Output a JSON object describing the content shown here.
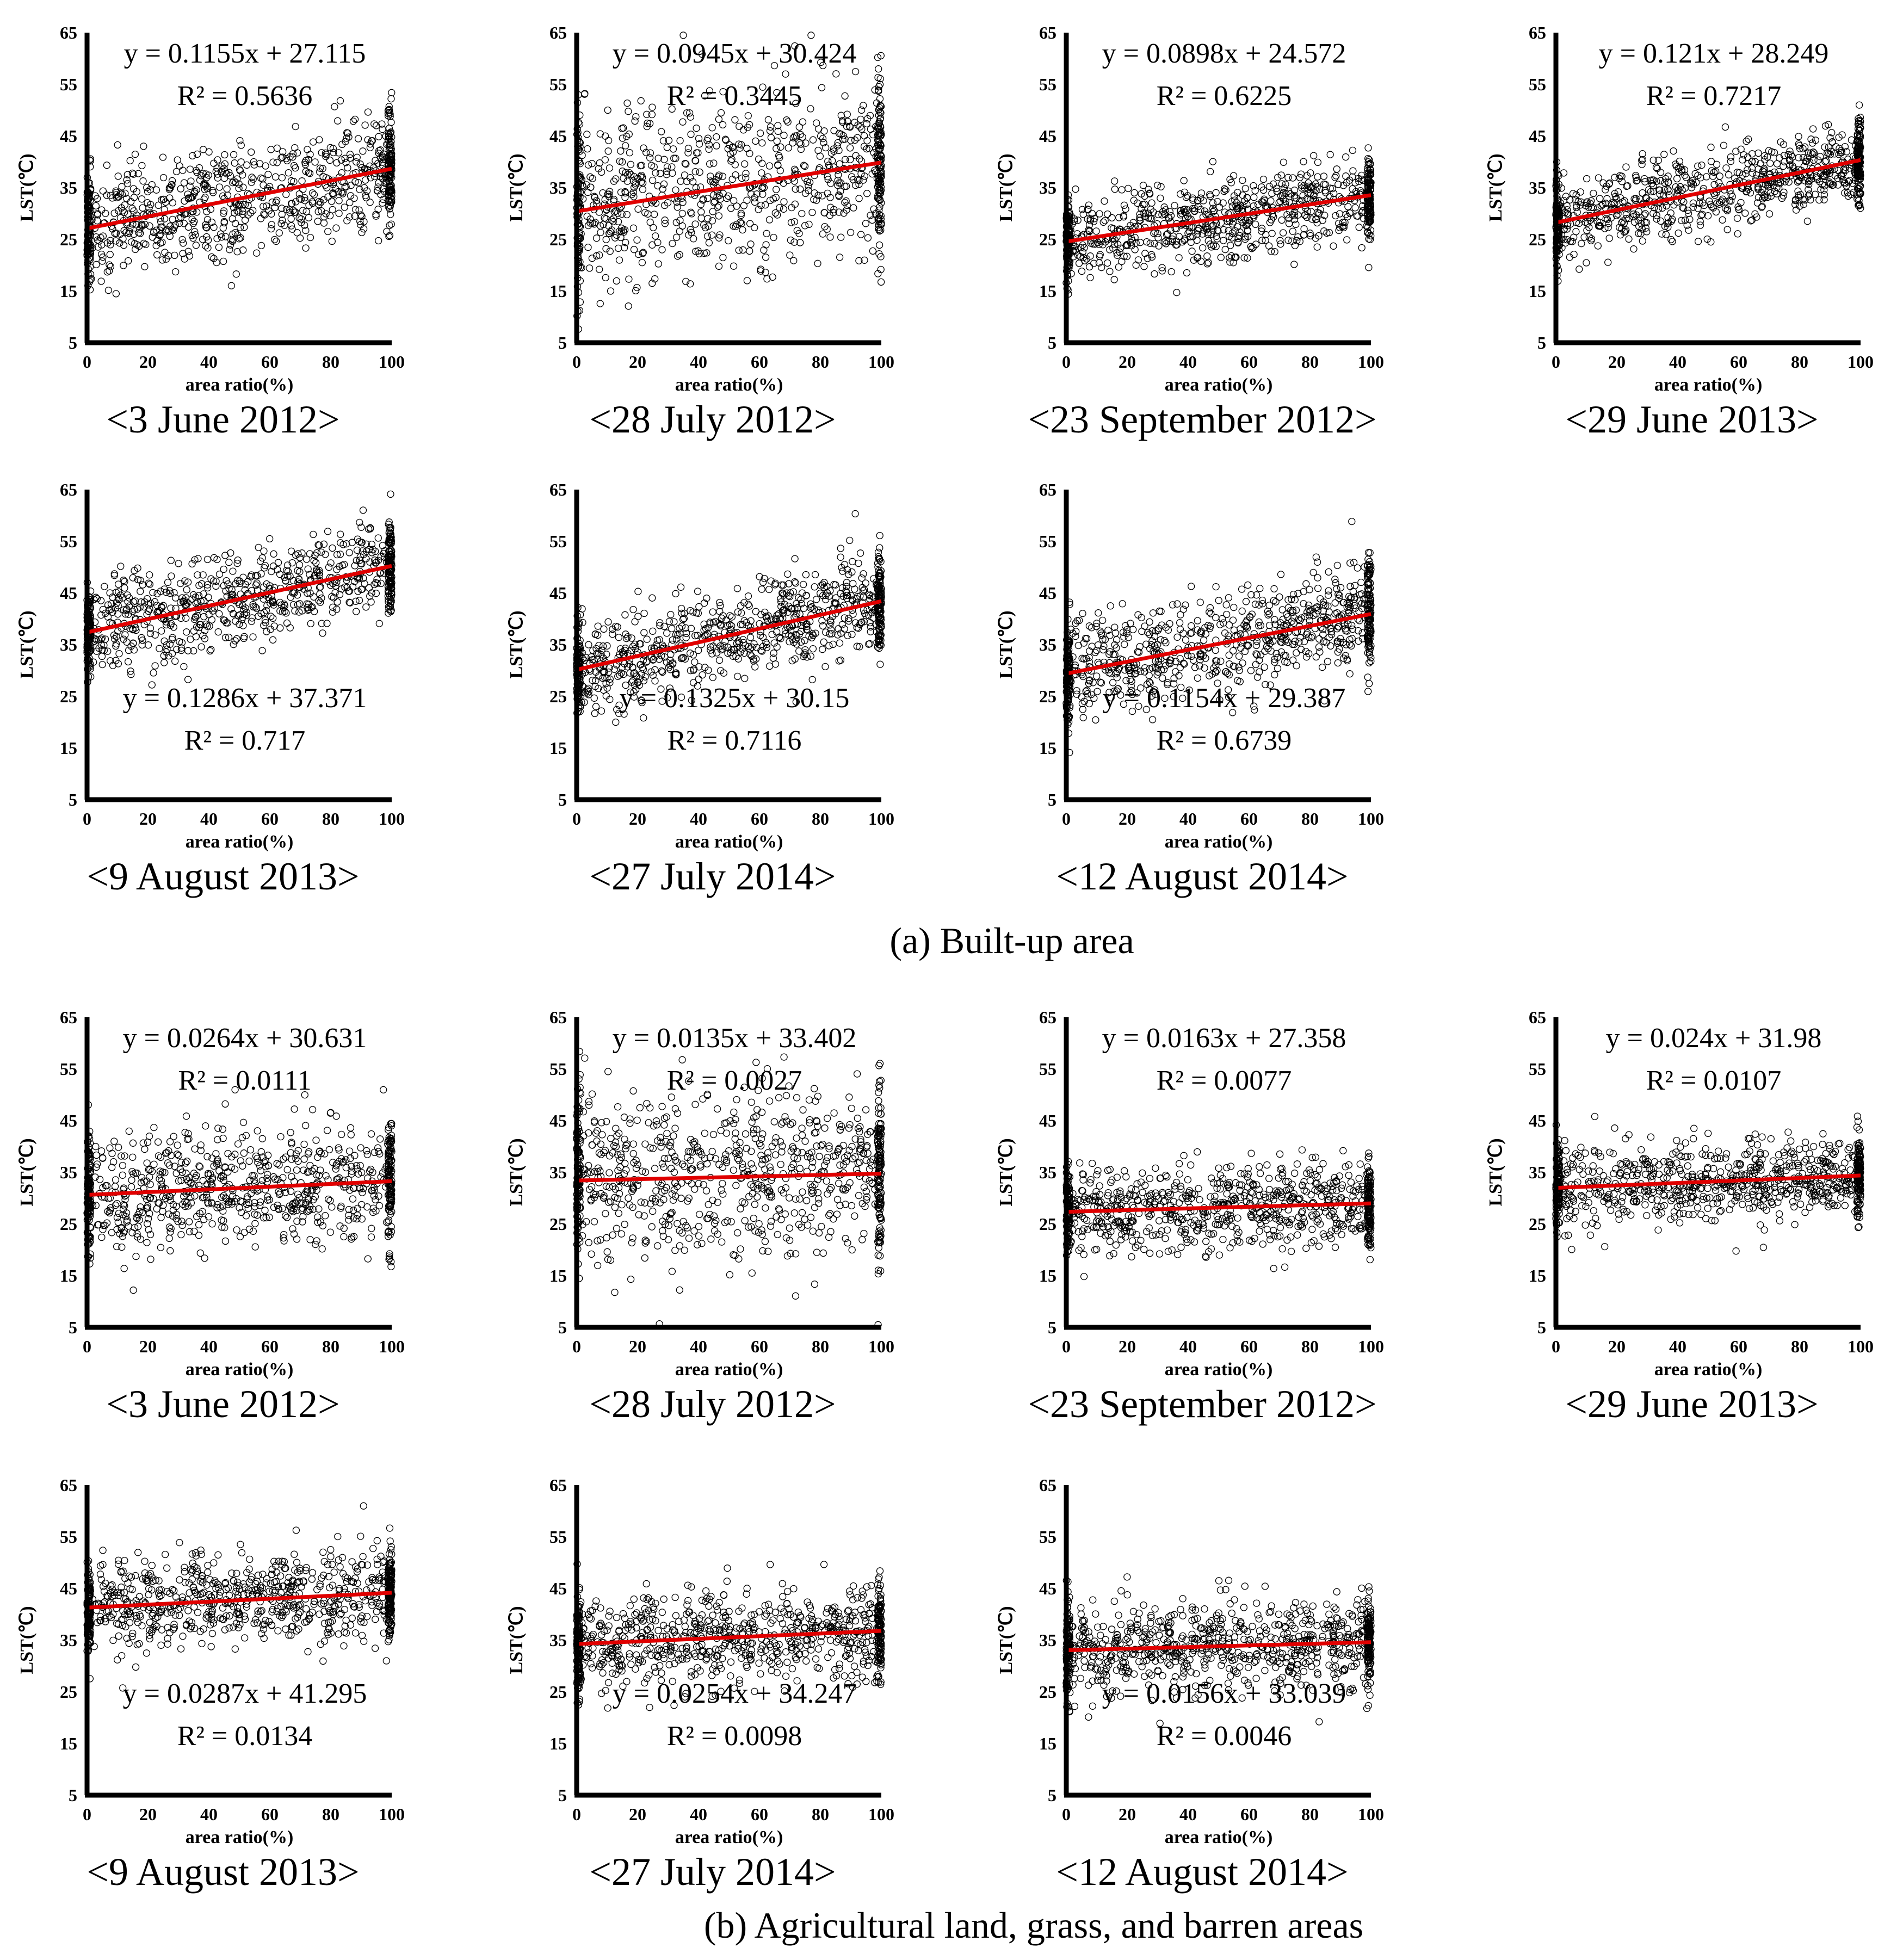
{
  "colors": {
    "points": "#000000",
    "trend": "#e00000",
    "axis": "#000000"
  },
  "sections": [
    {
      "label": "(a) Built-up area"
    },
    {
      "label": "(b) Agricultural land, grass, and barren areas"
    }
  ],
  "chart_data": [
    {
      "type": "scatter",
      "section": "a",
      "title": "<3 June 2012>",
      "xlabel": "area ratio(%)",
      "ylabel": "LST(℃)",
      "xlim": [
        0,
        100
      ],
      "ylim": [
        5,
        65
      ],
      "xticks": [
        0,
        20,
        40,
        60,
        80,
        100
      ],
      "yticks": [
        5,
        15,
        25,
        35,
        45,
        55,
        65
      ],
      "equation": "y = 0.1155x + 27.115",
      "r2": "R² = 0.5636",
      "slope": 0.1155,
      "intercept": 27.115,
      "spread": 5.5
    },
    {
      "type": "scatter",
      "section": "a",
      "title": "<28 July 2012>",
      "xlabel": "area ratio(%)",
      "ylabel": "LST(℃)",
      "xlim": [
        0,
        100
      ],
      "ylim": [
        5,
        65
      ],
      "xticks": [
        0,
        20,
        40,
        60,
        80,
        100
      ],
      "yticks": [
        5,
        15,
        25,
        35,
        45,
        55,
        65
      ],
      "equation": "y = 0.0945x + 30.424",
      "r2": "R² = 0.3445",
      "slope": 0.0945,
      "intercept": 30.424,
      "spread": 8.5
    },
    {
      "type": "scatter",
      "section": "a",
      "title": "<23 September 2012>",
      "xlabel": "area ratio(%)",
      "ylabel": "LST(℃)",
      "xlim": [
        0,
        100
      ],
      "ylim": [
        5,
        65
      ],
      "xticks": [
        0,
        20,
        40,
        60,
        80,
        100
      ],
      "yticks": [
        5,
        15,
        25,
        35,
        45,
        55,
        65
      ],
      "equation": "y = 0.0898x + 24.572",
      "r2": "R² = 0.6225",
      "slope": 0.0898,
      "intercept": 24.572,
      "spread": 4.0
    },
    {
      "type": "scatter",
      "section": "a",
      "title": "<29 June 2013>",
      "xlabel": "area ratio(%)",
      "ylabel": "LST(℃)",
      "xlim": [
        0,
        100
      ],
      "ylim": [
        5,
        65
      ],
      "xticks": [
        0,
        20,
        40,
        60,
        80,
        100
      ],
      "yticks": [
        5,
        15,
        25,
        35,
        45,
        55,
        65
      ],
      "equation": "y = 0.121x + 28.249",
      "r2": "R² = 0.7217",
      "slope": 0.121,
      "intercept": 28.249,
      "spread": 4.0
    },
    {
      "type": "scatter",
      "section": "a",
      "title": "<9 August 2013>",
      "xlabel": "area ratio(%)",
      "ylabel": "LST(℃)",
      "xlim": [
        0,
        100
      ],
      "ylim": [
        5,
        65
      ],
      "xticks": [
        0,
        20,
        40,
        60,
        80,
        100
      ],
      "yticks": [
        5,
        15,
        25,
        35,
        45,
        55,
        65
      ],
      "equation": "y = 0.1286x + 37.371",
      "r2": "R² = 0.717",
      "slope": 0.1286,
      "intercept": 37.371,
      "spread": 4.5
    },
    {
      "type": "scatter",
      "section": "a",
      "title": "<27 July 2014>",
      "xlabel": "area ratio(%)",
      "ylabel": "LST(℃)",
      "xlim": [
        0,
        100
      ],
      "ylim": [
        5,
        65
      ],
      "xticks": [
        0,
        20,
        40,
        60,
        80,
        100
      ],
      "yticks": [
        5,
        15,
        25,
        35,
        45,
        55,
        65
      ],
      "equation": "y = 0.1325x + 30.15",
      "r2": "R² = 0.7116",
      "slope": 0.1325,
      "intercept": 30.15,
      "spread": 4.5
    },
    {
      "type": "scatter",
      "section": "a",
      "title": "<12 August 2014>",
      "xlabel": "area ratio(%)",
      "ylabel": "LST(℃)",
      "xlim": [
        0,
        100
      ],
      "ylim": [
        5,
        65
      ],
      "xticks": [
        0,
        20,
        40,
        60,
        80,
        100
      ],
      "yticks": [
        5,
        15,
        25,
        35,
        45,
        55,
        65
      ],
      "equation": "y = 0.1154x + 29.387",
      "r2": "R² = 0.6739",
      "slope": 0.1154,
      "intercept": 29.387,
      "spread": 5.0
    },
    {
      "type": "scatter",
      "section": "b",
      "title": "<3 June 2012>",
      "xlabel": "area ratio(%)",
      "ylabel": "LST(℃)",
      "xlim": [
        0,
        100
      ],
      "ylim": [
        5,
        65
      ],
      "xticks": [
        0,
        20,
        40,
        60,
        80,
        100
      ],
      "yticks": [
        5,
        15,
        25,
        35,
        45,
        55,
        65
      ],
      "equation": "y = 0.0264x + 30.631",
      "r2": "R² = 0.0111",
      "slope": 0.0264,
      "intercept": 30.631,
      "spread": 6.0
    },
    {
      "type": "scatter",
      "section": "b",
      "title": "<28 July 2012>",
      "xlabel": "area ratio(%)",
      "ylabel": "LST(℃)",
      "xlim": [
        0,
        100
      ],
      "ylim": [
        5,
        65
      ],
      "xticks": [
        0,
        20,
        40,
        60,
        80,
        100
      ],
      "yticks": [
        5,
        15,
        25,
        35,
        45,
        55,
        65
      ],
      "equation": "y = 0.0135x + 33.402",
      "r2": "R² = 0.0027",
      "slope": 0.0135,
      "intercept": 33.402,
      "spread": 8.5
    },
    {
      "type": "scatter",
      "section": "b",
      "title": "<23 September 2012>",
      "xlabel": "area ratio(%)",
      "ylabel": "LST(℃)",
      "xlim": [
        0,
        100
      ],
      "ylim": [
        5,
        65
      ],
      "xticks": [
        0,
        20,
        40,
        60,
        80,
        100
      ],
      "yticks": [
        5,
        15,
        25,
        35,
        45,
        55,
        65
      ],
      "equation": "y = 0.0163x + 27.358",
      "r2": "R² = 0.0077",
      "slope": 0.0163,
      "intercept": 27.358,
      "spread": 4.0
    },
    {
      "type": "scatter",
      "section": "b",
      "title": "<29 June 2013>",
      "xlabel": "area ratio(%)",
      "ylabel": "LST(℃)",
      "xlim": [
        0,
        100
      ],
      "ylim": [
        5,
        65
      ],
      "xticks": [
        0,
        20,
        40,
        60,
        80,
        100
      ],
      "yticks": [
        5,
        15,
        25,
        35,
        45,
        55,
        65
      ],
      "equation": "y = 0.024x + 31.98",
      "r2": "R² = 0.0107",
      "slope": 0.024,
      "intercept": 31.98,
      "spread": 4.0
    },
    {
      "type": "scatter",
      "section": "b",
      "title": "<9 August 2013>",
      "xlabel": "area ratio(%)",
      "ylabel": "LST(℃)",
      "xlim": [
        0,
        100
      ],
      "ylim": [
        5,
        65
      ],
      "xticks": [
        0,
        20,
        40,
        60,
        80,
        100
      ],
      "yticks": [
        5,
        15,
        25,
        35,
        45,
        55,
        65
      ],
      "equation": "y = 0.0287x + 41.295",
      "r2": "R² = 0.0134",
      "slope": 0.0287,
      "intercept": 41.295,
      "spread": 4.5
    },
    {
      "type": "scatter",
      "section": "b",
      "title": "<27 July 2014>",
      "xlabel": "area ratio(%)",
      "ylabel": "LST(℃)",
      "xlim": [
        0,
        100
      ],
      "ylim": [
        5,
        65
      ],
      "xticks": [
        0,
        20,
        40,
        60,
        80,
        100
      ],
      "yticks": [
        5,
        15,
        25,
        35,
        45,
        55,
        65
      ],
      "equation": "y = 0.0254x + 34.247",
      "r2": "R² = 0.0098",
      "slope": 0.0254,
      "intercept": 34.247,
      "spread": 4.5
    },
    {
      "type": "scatter",
      "section": "b",
      "title": "<12 August 2014>",
      "xlabel": "area ratio(%)",
      "ylabel": "LST(℃)",
      "xlim": [
        0,
        100
      ],
      "ylim": [
        5,
        65
      ],
      "xticks": [
        0,
        20,
        40,
        60,
        80,
        100
      ],
      "yticks": [
        5,
        15,
        25,
        35,
        45,
        55,
        65
      ],
      "equation": "y = 0.0156x + 33.039",
      "r2": "R² = 0.0046",
      "slope": 0.0156,
      "intercept": 33.039,
      "spread": 4.5
    }
  ]
}
